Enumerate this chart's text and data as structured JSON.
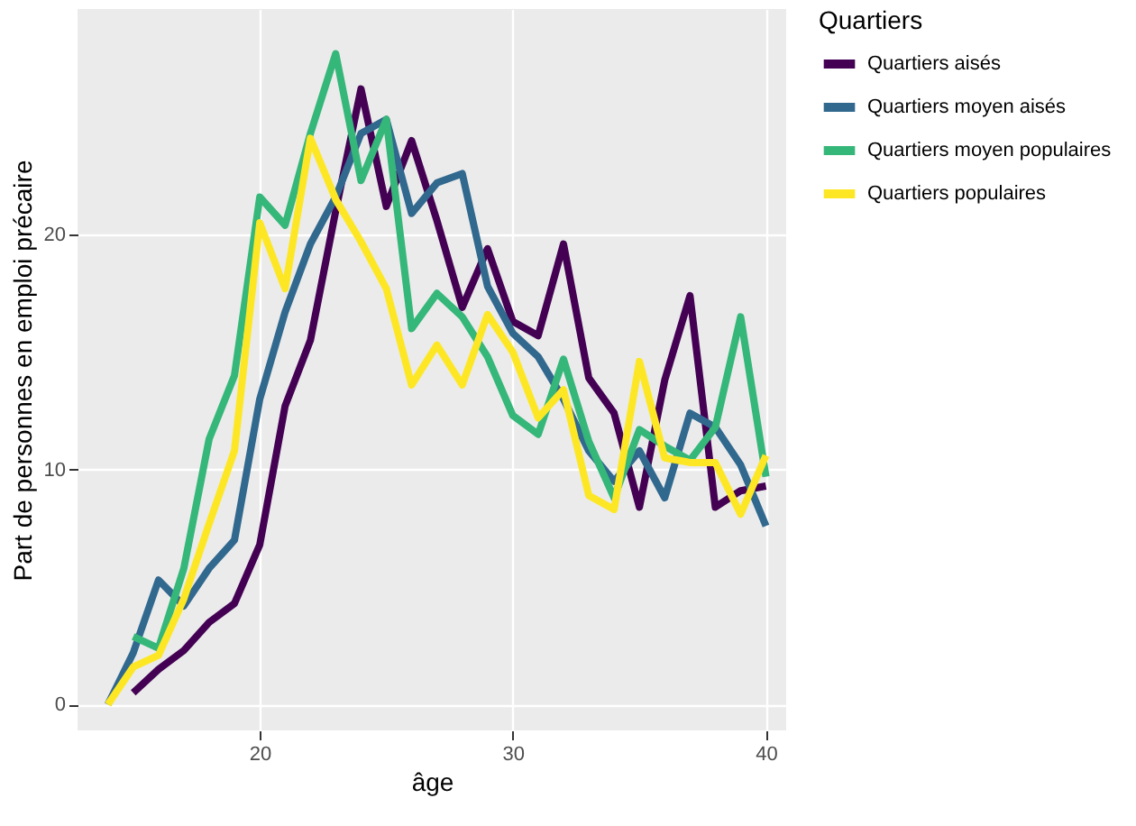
{
  "chart_data": {
    "type": "line",
    "xlabel": "âge",
    "ylabel": "Part de personnes en emploi précaire",
    "legend_title": "Quartiers",
    "legend": "right",
    "grid": true,
    "line_style": "solid",
    "marker": "none",
    "xlim": [
      12.8,
      40.8
    ],
    "xticks": [
      20,
      30,
      40
    ],
    "ylim": [
      -1.1,
      29.6
    ],
    "yticks": [
      0,
      10,
      20
    ],
    "series": [
      {
        "name": "Quartiers aisés",
        "color": "#440154",
        "x": [
          15,
          16,
          17,
          18,
          19,
          20,
          21,
          22,
          23,
          24,
          25,
          26,
          27,
          28,
          29,
          30,
          31,
          32,
          33,
          34,
          35,
          36,
          37,
          38,
          39,
          40
        ],
        "values": [
          0.5,
          1.5,
          2.3,
          3.5,
          4.3,
          6.8,
          12.7,
          15.5,
          21,
          26.2,
          21.2,
          24,
          20.6,
          16.9,
          19.4,
          16.3,
          15.7,
          19.6,
          13.9,
          12.4,
          8.4,
          13.8,
          17.4,
          8.4,
          9.1,
          9.3
        ]
      },
      {
        "name": "Quartiers moyen aisés",
        "color": "#31688e",
        "x": [
          14,
          15,
          16,
          17,
          18,
          19,
          20,
          21,
          22,
          23,
          24,
          25,
          26,
          27,
          28,
          29,
          30,
          31,
          32,
          33,
          34,
          35,
          36,
          37,
          38,
          39,
          40
        ],
        "values": [
          0,
          2.2,
          5.3,
          4.2,
          5.8,
          7,
          13,
          16.7,
          19.6,
          21.6,
          24.3,
          24.9,
          20.9,
          22.2,
          22.6,
          17.8,
          15.8,
          14.8,
          13,
          10.8,
          9.5,
          10.8,
          8.8,
          12.4,
          11.8,
          10.2,
          7.6
        ]
      },
      {
        "name": "Quartiers moyen populaires",
        "color": "#35b779",
        "x": [
          15,
          16,
          17,
          18,
          19,
          20,
          21,
          22,
          23,
          24,
          25,
          26,
          27,
          28,
          29,
          30,
          31,
          32,
          33,
          34,
          35,
          36,
          37,
          38,
          39,
          40
        ],
        "values": [
          2.9,
          2.4,
          5.8,
          11.3,
          14,
          21.6,
          20.4,
          24.3,
          27.7,
          22.3,
          24.9,
          16,
          17.5,
          16.5,
          14.8,
          12.3,
          11.5,
          14.7,
          11.2,
          8.8,
          11.7,
          11,
          10.4,
          11.8,
          16.5,
          9.7
        ]
      },
      {
        "name": "Quartiers populaires",
        "color": "#fde725",
        "x": [
          14,
          15,
          16,
          17,
          18,
          19,
          20,
          21,
          22,
          23,
          24,
          25,
          26,
          27,
          28,
          29,
          30,
          31,
          32,
          33,
          34,
          35,
          36,
          37,
          38,
          39,
          40
        ],
        "values": [
          0,
          1.6,
          2.1,
          4.5,
          7.7,
          10.8,
          20.5,
          17.7,
          24.1,
          21.5,
          19.7,
          17.7,
          13.6,
          15.3,
          13.6,
          16.6,
          15,
          12.2,
          13.4,
          8.9,
          8.3,
          14.6,
          10.5,
          10.3,
          10.3,
          8.1,
          10.6
        ]
      }
    ]
  }
}
